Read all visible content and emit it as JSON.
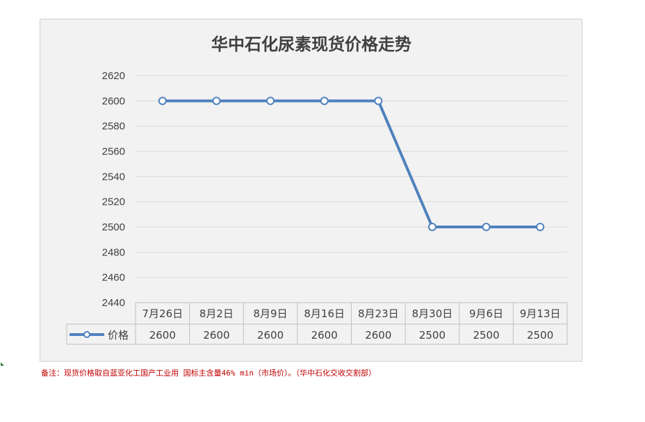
{
  "chart_data": {
    "type": "line",
    "title": "华中石化尿素现货价格走势",
    "categories": [
      "7月26日",
      "8月2日",
      "8月9日",
      "8月16日",
      "8月23日",
      "8月30日",
      "9月6日",
      "9月13日"
    ],
    "series": [
      {
        "name": "价格",
        "values": [
          2600,
          2600,
          2600,
          2600,
          2600,
          2500,
          2500,
          2500
        ]
      }
    ],
    "ylim": [
      2440,
      2620
    ],
    "yticks": [
      2620,
      2600,
      2580,
      2560,
      2540,
      2520,
      2500,
      2480,
      2460,
      2440
    ],
    "grid": true,
    "legend": "data-table",
    "line_color": "#4f81bd"
  },
  "note": "备注：现货价格取自蓝亚化工国产工业用 国标主含量46% min（市场价）。（华中石化交收交割部）"
}
